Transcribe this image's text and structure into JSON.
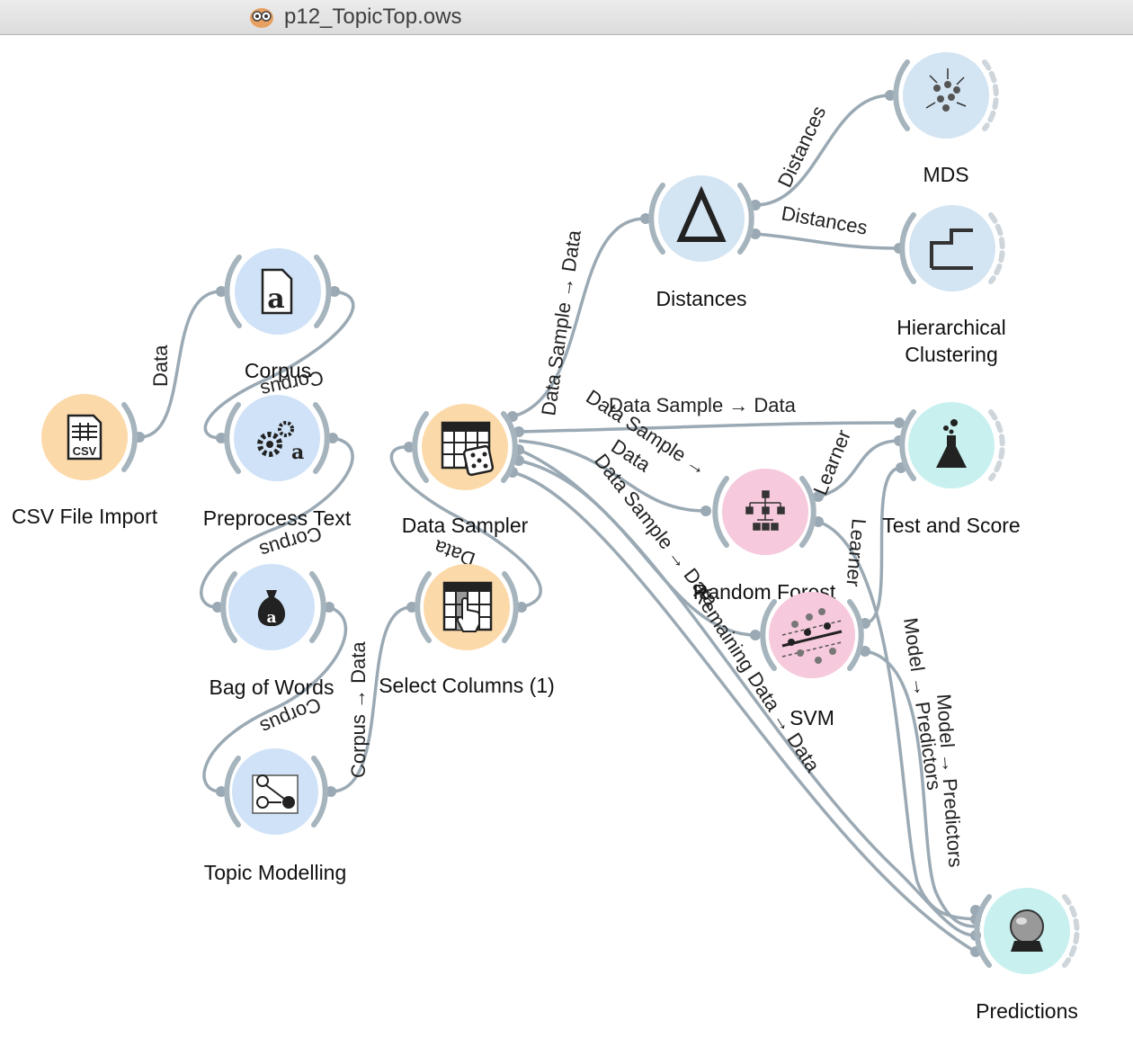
{
  "window": {
    "title": "p12_TopicTop.ows",
    "icon": "orange-logo-icon"
  },
  "colors": {
    "data_node": "#fcd9a9",
    "text_node": "#cfe2f7",
    "unsupervised_node": "#d3e4f2",
    "model_node": "#f6c9dc",
    "evaluate_node": "#c8f0ef",
    "link": "#9aa9b3"
  },
  "nodes": {
    "csv_import": {
      "label": "CSV File Import",
      "icon": "csv-file-icon"
    },
    "corpus": {
      "label": "Corpus",
      "icon": "corpus-document-icon"
    },
    "preprocess": {
      "label": "Preprocess Text",
      "icon": "gears-icon"
    },
    "bag_of_words": {
      "label": "Bag of Words",
      "icon": "money-bag-icon"
    },
    "topic_modelling": {
      "label": "Topic Modelling",
      "icon": "topic-graph-icon"
    },
    "data_sampler": {
      "label": "Data Sampler",
      "icon": "table-dice-icon"
    },
    "select_columns": {
      "label": "Select Columns (1)",
      "icon": "table-hand-icon"
    },
    "distances": {
      "label": "Distances",
      "icon": "delta-icon"
    },
    "mds": {
      "label": "MDS",
      "icon": "scatter-arrows-icon"
    },
    "hier_clustering": {
      "label_line1": "Hierarchical",
      "label_line2": "Clustering",
      "icon": "dendrogram-icon"
    },
    "random_forest": {
      "label": "Random Forest",
      "icon": "tree-icon"
    },
    "svm": {
      "label": "SVM",
      "icon": "svm-scatter-icon"
    },
    "test_score": {
      "label": "Test and Score",
      "icon": "flask-icon"
    },
    "predictions": {
      "label": "Predictions",
      "icon": "crystal-ball-icon"
    }
  },
  "links": {
    "csv_corpus": "Data",
    "corpus_preprocess": "Corpus",
    "preprocess_bow": "Corpus",
    "bow_topic": "Corpus",
    "topic_select": "Corpus → Data",
    "select_sampler": "Data",
    "sampler_distances": "Data Sample → Data",
    "sampler_testscore": "Data Sample → Data",
    "sampler_rf": "Data Sample →",
    "sampler_rf_2": "Data",
    "sampler_svm": "Data Sample → Data",
    "sampler_predictions": "Remaining Data → Data",
    "distances_mds": "Distances",
    "distances_hc": "Distances",
    "rf_testscore": "Learner",
    "svm_testscore": "Learner",
    "rf_predictions": "Model → Predictors",
    "svm_predictions": "Model → Predictors"
  }
}
